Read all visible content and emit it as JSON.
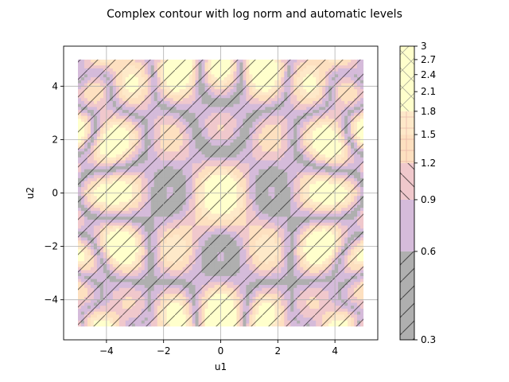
{
  "chart_data": {
    "type": "heatmap",
    "title": "Complex contour with log norm and automatic levels",
    "xlabel": "u1",
    "ylabel": "u2",
    "xlim": [
      -5.5,
      5.5
    ],
    "ylim": [
      -5.5,
      5.5
    ],
    "data_extent": {
      "x": [
        -5,
        5
      ],
      "y": [
        -5,
        5
      ]
    },
    "grid": true,
    "x_ticks": [
      -4,
      -2,
      0,
      2,
      4
    ],
    "y_ticks": [
      -4,
      -2,
      0,
      2,
      4
    ],
    "x_tick_labels": [
      "−4",
      "−2",
      "0",
      "2",
      "4"
    ],
    "y_tick_labels": [
      "−4",
      "−2",
      "0",
      "2",
      "4"
    ],
    "colorbar": {
      "scale": "log",
      "range": [
        0.3,
        3
      ],
      "ticks": [
        0.3,
        0.6,
        0.9,
        1.2,
        1.5,
        1.8,
        2.1,
        2.4,
        2.7,
        3
      ],
      "tick_labels": [
        "0.3",
        "0.6",
        "0.9",
        "1.2",
        "1.5",
        "1.8",
        "2.1",
        "2.4",
        "2.7",
        "3"
      ],
      "levels": [
        {
          "from": 0.3,
          "to": 0.6,
          "color": "#afafaf",
          "hatch": "/"
        },
        {
          "from": 0.6,
          "to": 0.9,
          "color": "#d5bbda",
          "hatch": ""
        },
        {
          "from": 0.9,
          "to": 1.2,
          "color": "#f0c8cc",
          "hatch": "\\"
        },
        {
          "from": 1.2,
          "to": 1.5,
          "color": "#fde0c0",
          "hatch": "+"
        },
        {
          "from": 1.5,
          "to": 1.8,
          "color": "#fee9c9",
          "hatch": "*"
        },
        {
          "from": 1.8,
          "to": 3,
          "color": "#ffffcc",
          "hatch": "x"
        }
      ]
    }
  }
}
